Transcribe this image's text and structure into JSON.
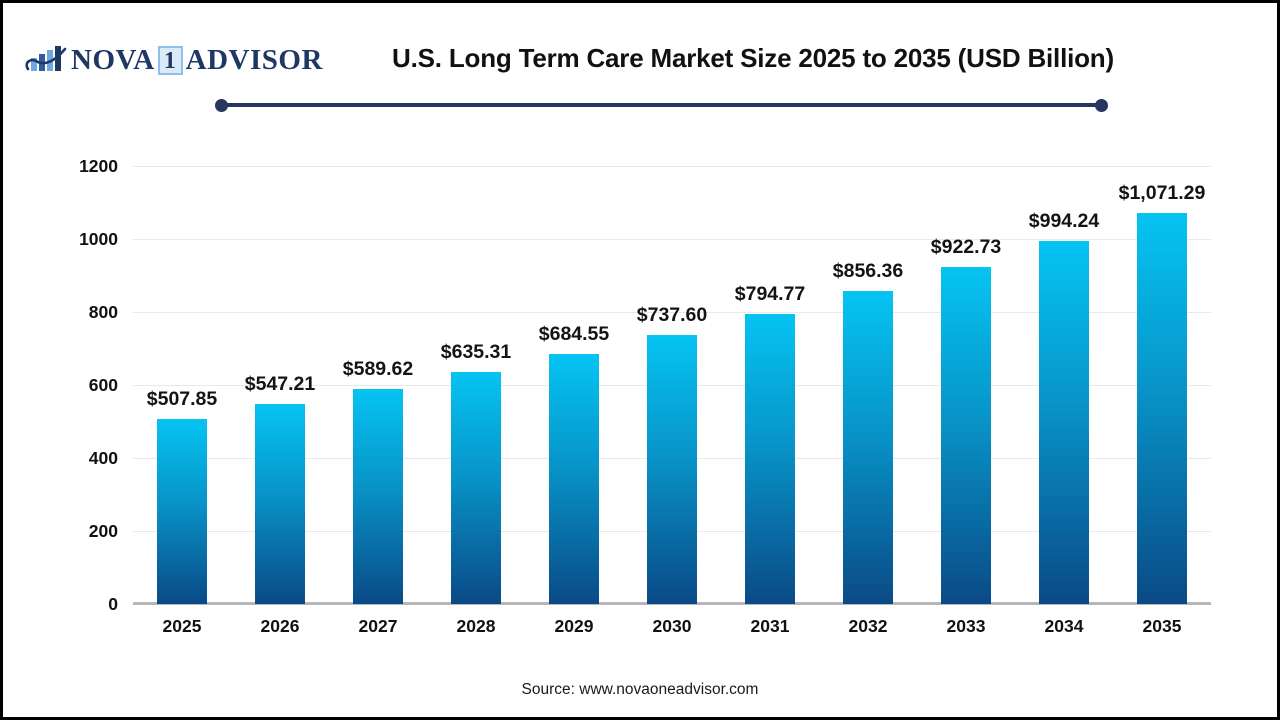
{
  "header": {
    "logo": {
      "icon": "bar-chart-swoosh-icon",
      "brand_prefix": "NOVA",
      "brand_number": "1",
      "brand_suffix": "ADVISOR",
      "navy": "#1e3765",
      "light_blue": "#6fa8dc"
    },
    "title": "U.S. Long Term Care Market Size 2025 to 2035 (USD Billion)",
    "divider_color": "#26365f"
  },
  "chart_data": {
    "type": "bar",
    "title": "U.S. Long Term Care Market Size 2025 to 2035 (USD Billion)",
    "categories": [
      "2025",
      "2026",
      "2027",
      "2028",
      "2029",
      "2030",
      "2031",
      "2032",
      "2033",
      "2034",
      "2035"
    ],
    "values": [
      507.85,
      547.21,
      589.62,
      635.31,
      684.55,
      737.6,
      794.77,
      856.36,
      922.73,
      994.24,
      1071.29
    ],
    "value_labels": [
      "$507.85",
      "$547.21",
      "$589.62",
      "$635.31",
      "$684.55",
      "$737.60",
      "$794.77",
      "$856.36",
      "$922.73",
      "$994.24",
      "$1,071.29"
    ],
    "xlabel": "",
    "ylabel": "",
    "ylim": [
      0,
      1200
    ],
    "yticks": [
      0,
      200,
      400,
      600,
      800,
      1000,
      1200
    ],
    "grid": true,
    "legend": false,
    "bar_gradient_top": "#05c4f2",
    "bar_gradient_mid": "#0894c8",
    "bar_gradient_bottom": "#0a4a86",
    "gridline_color": "#e9e9e9",
    "axis_line_color": "#b7b7b7"
  },
  "footer": {
    "source": "Source: www.novaoneadvisor.com"
  }
}
